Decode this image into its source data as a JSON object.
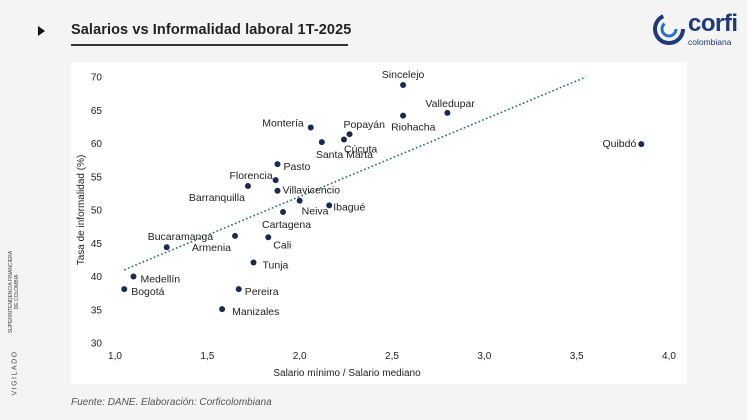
{
  "header": {
    "title": "Salarios vs Informalidad laboral 1T-2025"
  },
  "logo": {
    "word": "corfi",
    "sub": "colombiana"
  },
  "side": {
    "vigilado": "VIGILADO",
    "superintendencia": "SUPERINTENDENCIA FINANCIERA DE COLOMBIA"
  },
  "footer": {
    "source": "Fuente: DANE. Elaboración: Corficolombiana"
  },
  "colors": {
    "point": "#1b2a52",
    "trend": "#1a6b6e",
    "brand": "#1e3a7a"
  },
  "chart_data": {
    "type": "scatter",
    "title": "Salarios vs Informalidad laboral 1T-2025",
    "xlabel": "Salario mínimo / Salario mediano",
    "ylabel": "Tasa de informalidad (%)",
    "xlim": [
      1.0,
      4.0
    ],
    "ylim": [
      30,
      70
    ],
    "xticks": [
      "1,0",
      "1,5",
      "2,0",
      "2,5",
      "3,0",
      "3,5",
      "4,0"
    ],
    "yticks": [
      "30",
      "35",
      "40",
      "45",
      "50",
      "55",
      "60",
      "65",
      "70"
    ],
    "grid": false,
    "points": [
      {
        "label": "Sincelejo",
        "x": 2.56,
        "y": 68.8
      },
      {
        "label": "Valledupar",
        "x": 2.8,
        "y": 64.6
      },
      {
        "label": "Riohacha",
        "x": 2.56,
        "y": 64.2
      },
      {
        "label": "Montería",
        "x": 2.06,
        "y": 62.4
      },
      {
        "label": "Popayán",
        "x": 2.27,
        "y": 61.4
      },
      {
        "label": "Cúcuta",
        "x": 2.24,
        "y": 60.6
      },
      {
        "label": "Santa Marta",
        "x": 2.12,
        "y": 60.2
      },
      {
        "label": "Quibdó",
        "x": 3.85,
        "y": 59.9
      },
      {
        "label": "Pasto",
        "x": 1.88,
        "y": 56.9
      },
      {
        "label": "Florencia",
        "x": 1.87,
        "y": 54.5
      },
      {
        "label": "Barranquilla",
        "x": 1.72,
        "y": 53.6
      },
      {
        "label": "Villavicencio",
        "x": 1.88,
        "y": 52.9
      },
      {
        "label": "Neiva",
        "x": 2.0,
        "y": 51.4
      },
      {
        "label": "Ibagué",
        "x": 2.16,
        "y": 50.7
      },
      {
        "label": "Cartagena",
        "x": 1.91,
        "y": 49.7
      },
      {
        "label": "Armenia",
        "x": 1.65,
        "y": 46.1
      },
      {
        "label": "Cali",
        "x": 1.83,
        "y": 45.9
      },
      {
        "label": "Bucaramanga",
        "x": 1.28,
        "y": 44.4
      },
      {
        "label": "Tunja",
        "x": 1.75,
        "y": 42.1
      },
      {
        "label": "Medellín",
        "x": 1.1,
        "y": 40.0
      },
      {
        "label": "Bogotá",
        "x": 1.05,
        "y": 38.1
      },
      {
        "label": "Pereira",
        "x": 1.67,
        "y": 38.1
      },
      {
        "label": "Manizales",
        "x": 1.58,
        "y": 35.1
      }
    ],
    "trendline": {
      "x": [
        1.05,
        3.55
      ],
      "y": [
        41.0,
        70.0
      ],
      "style": "dotted"
    }
  }
}
